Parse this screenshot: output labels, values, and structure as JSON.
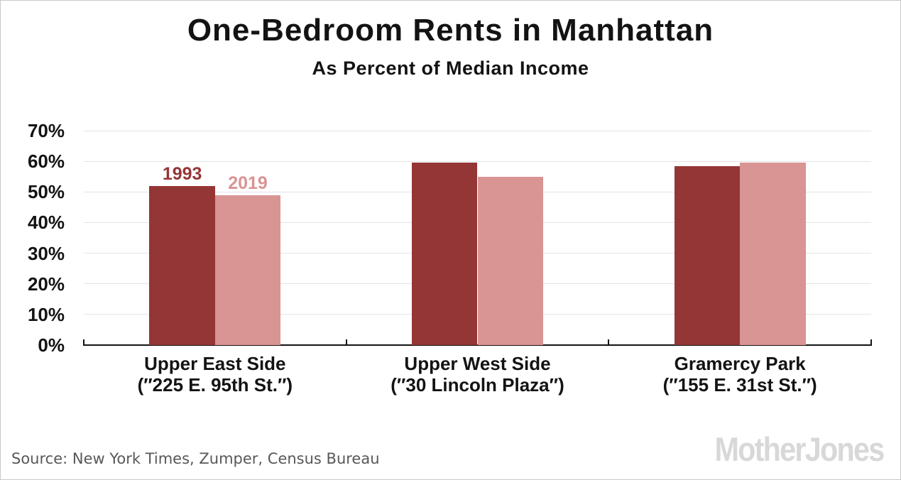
{
  "chart_data": {
    "type": "bar",
    "title": "One-Bedroom Rents in Manhattan",
    "subtitle": "As Percent of Median Income",
    "categories": [
      {
        "name": "Upper East Side",
        "address": "(″225 E. 95th St.″)"
      },
      {
        "name": "Upper West Side",
        "address": "(″30 Lincoln Plaza″)"
      },
      {
        "name": "Gramercy Park",
        "address": "(″155 E. 31st St.″)"
      }
    ],
    "series": [
      {
        "name": "1993",
        "color": "#943635",
        "values": [
          52,
          59.5,
          58.5
        ]
      },
      {
        "name": "2019",
        "color": "#d99494",
        "values": [
          49,
          55,
          59.5
        ]
      }
    ],
    "ylim": [
      0,
      70
    ],
    "ytick_step": 10,
    "ytick_labels": [
      "0%",
      "10%",
      "20%",
      "30%",
      "40%",
      "50%",
      "60%",
      "70%"
    ],
    "xlabel": "",
    "ylabel": "",
    "grid": true,
    "legend": "inline-year-labels-above-first-group",
    "series_label_group": 0,
    "colors": {
      "gridline": "#e3e3e3",
      "axis": "#131313",
      "text": "#131313",
      "source_text": "#58585a",
      "logo": "#d8d8d8"
    }
  },
  "footer": {
    "source": "Source: New York Times, Zumper, Census Bureau",
    "logo_text": "MotherJones"
  }
}
